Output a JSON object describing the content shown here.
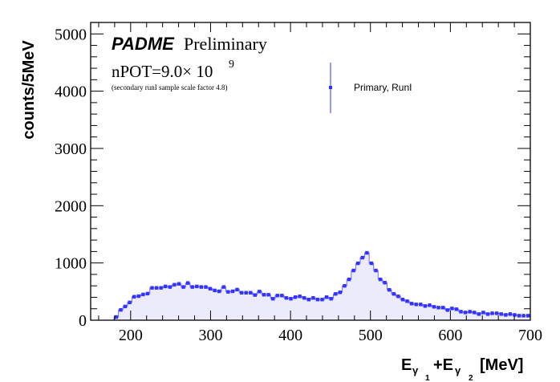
{
  "chart_data": {
    "type": "bar",
    "style": "histogram with markers",
    "title": "",
    "xlabel": "[MeV]",
    "xlabel_parts": {
      "e1": "E",
      "g1": "γ",
      "s1": "1",
      "plus": "+E",
      "g2": "γ",
      "s2": "2",
      "unit": "[MeV]"
    },
    "ylabel": "counts/5MeV",
    "xlim": [
      150,
      700
    ],
    "ylim": [
      0,
      5200
    ],
    "xticks": [
      200,
      300,
      400,
      500,
      600,
      700
    ],
    "yticks": [
      0,
      1000,
      2000,
      3000,
      4000,
      5000
    ],
    "xtick_labels": [
      "200",
      "300",
      "400",
      "500",
      "600",
      "700"
    ],
    "ytick_labels": [
      "0",
      "1000",
      "2000",
      "3000",
      "4000",
      "5000"
    ],
    "grid": false,
    "bin_center_start": 182,
    "bin_step": 5.6,
    "series": [
      {
        "name": "Primary, RunI",
        "color": "#3333ff",
        "fill": "#ebebfb",
        "values": [
          56,
          180,
          240,
          310,
          410,
          420,
          450,
          465,
          565,
          565,
          565,
          590,
          580,
          620,
          635,
          580,
          650,
          580,
          590,
          580,
          580,
          550,
          520,
          505,
          580,
          495,
          505,
          535,
          480,
          480,
          480,
          440,
          501,
          445,
          445,
          375,
          431,
          431,
          389,
          375,
          403,
          417,
          389,
          361,
          389,
          361,
          361,
          403,
          375,
          459,
          487,
          600,
          713,
          868,
          994,
          1093,
          1177,
          994,
          868,
          713,
          656,
          530,
          459,
          417,
          361,
          332,
          290,
          276,
          276,
          248,
          262,
          234,
          220,
          220,
          177,
          206,
          192,
          149,
          135,
          149,
          135,
          107,
          135,
          107,
          121,
          121,
          107,
          93,
          107,
          93,
          79,
          79,
          79
        ]
      }
    ],
    "legend": {
      "placement": "top-right",
      "entries": [
        "Primary, RunI"
      ]
    },
    "annotations": {
      "experiment": "PADME",
      "status": "Preliminary",
      "npot_prefix": "nPOT=9.0× 10",
      "npot_exponent": "9",
      "note": "(secondary runI sample scale factor 4.8)"
    }
  }
}
